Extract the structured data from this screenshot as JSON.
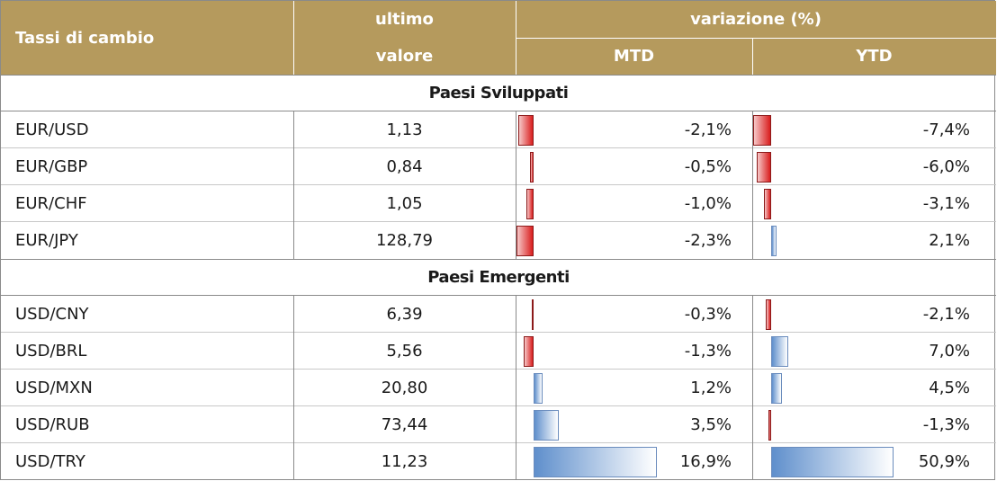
{
  "header": {
    "col1": "Tassi di cambio",
    "col2_line1": "ultimo",
    "col2_line2": "valore",
    "group": "variazione (%)",
    "mtd": "MTD",
    "ytd": "YTD"
  },
  "colors": {
    "header_bg": "#b59a5d",
    "negative": "#d91e1e",
    "positive": "#5f8fcc"
  },
  "sections": [
    {
      "title": "Paesi Sviluppati",
      "rows": [
        {
          "pair": "EUR/USD",
          "last": "1,13",
          "mtd": "-2,1%",
          "ytd": "-7,4%",
          "mtd_value": -2.1,
          "ytd_value": -7.4
        },
        {
          "pair": "EUR/GBP",
          "last": "0,84",
          "mtd": "-0,5%",
          "ytd": "-6,0%",
          "mtd_value": -0.5,
          "ytd_value": -6.0
        },
        {
          "pair": "EUR/CHF",
          "last": "1,05",
          "mtd": "-1,0%",
          "ytd": "-3,1%",
          "mtd_value": -1.0,
          "ytd_value": -3.1
        },
        {
          "pair": "EUR/JPY",
          "last": "128,79",
          "mtd": "-2,3%",
          "ytd": "2,1%",
          "mtd_value": -2.3,
          "ytd_value": 2.1
        }
      ]
    },
    {
      "title": "Paesi Emergenti",
      "rows": [
        {
          "pair": "USD/CNY",
          "last": "6,39",
          "mtd": "-0,3%",
          "ytd": "-2,1%",
          "mtd_value": -0.3,
          "ytd_value": -2.1
        },
        {
          "pair": "USD/BRL",
          "last": "5,56",
          "mtd": "-1,3%",
          "ytd": "7,0%",
          "mtd_value": -1.3,
          "ytd_value": 7.0
        },
        {
          "pair": "USD/MXN",
          "last": "20,80",
          "mtd": "1,2%",
          "ytd": "4,5%",
          "mtd_value": 1.2,
          "ytd_value": 4.5
        },
        {
          "pair": "USD/RUB",
          "last": "73,44",
          "mtd": "3,5%",
          "ytd": "-1,3%",
          "mtd_value": 3.5,
          "ytd_value": -1.3
        },
        {
          "pair": "USD/TRY",
          "last": "11,23",
          "mtd": "16,9%",
          "ytd": "50,9%",
          "mtd_value": 16.9,
          "ytd_value": 50.9
        }
      ]
    }
  ]
}
